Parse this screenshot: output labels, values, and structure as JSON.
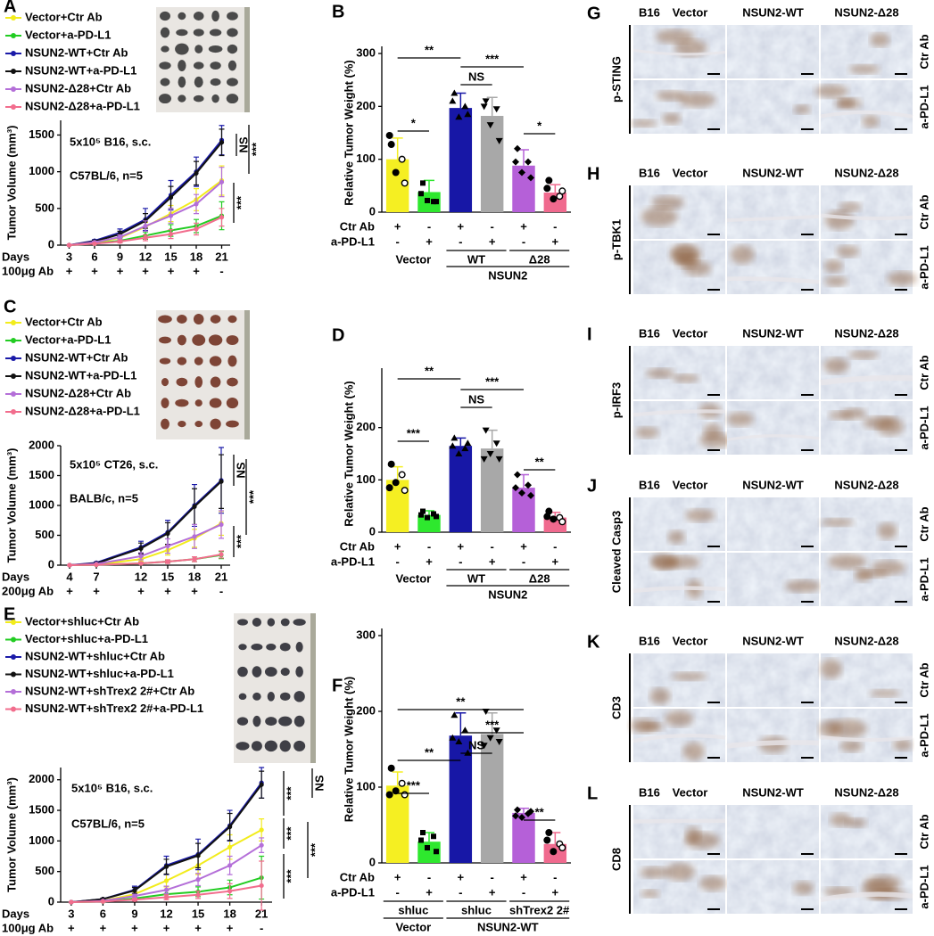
{
  "chart_data": [
    {
      "type": "line",
      "panel": "A",
      "ylabel": "Tumor Volume (mm³)",
      "xlabel": "Days",
      "dose_label": "100μg Ab",
      "x": [
        3,
        6,
        9,
        12,
        15,
        18,
        21
      ],
      "xlim": [
        2,
        22
      ],
      "ylim": [
        0,
        1700
      ],
      "yticks": [
        0,
        500,
        1000,
        1500
      ],
      "dose_marks": [
        "+",
        "+",
        "+",
        "+",
        "+",
        "+",
        "-"
      ],
      "annotations": [
        "5x10⁵ B16, s.c.",
        "C57BL/6, n=5"
      ],
      "significance": [
        "NS",
        "***",
        "***"
      ],
      "series": [
        {
          "name": "Vector+Ctr Ab",
          "color": "#f2ec1c",
          "values": [
            0,
            30,
            100,
            250,
            430,
            620,
            880
          ],
          "errors": [
            0,
            10,
            30,
            60,
            110,
            150,
            200
          ]
        },
        {
          "name": "Vector+a-PD-L1",
          "color": "#22cc22",
          "values": [
            0,
            20,
            60,
            130,
            200,
            260,
            400
          ],
          "errors": [
            0,
            8,
            25,
            50,
            80,
            90,
            190
          ]
        },
        {
          "name": "NSUN2-WT+Ctr Ab",
          "color": "#1a1aa8",
          "values": [
            0,
            60,
            170,
            350,
            680,
            1000,
            1430
          ],
          "errors": [
            0,
            15,
            50,
            150,
            200,
            200,
            200
          ]
        },
        {
          "name": "NSUN2-WT+a-PD-L1",
          "color": "#111111",
          "values": [
            0,
            50,
            150,
            330,
            650,
            980,
            1400
          ],
          "errors": [
            0,
            15,
            40,
            100,
            150,
            160,
            180
          ]
        },
        {
          "name": "NSUN2-Δ28+Ctr Ab",
          "color": "#b46fd8",
          "values": [
            0,
            40,
            110,
            260,
            400,
            560,
            860
          ],
          "errors": [
            0,
            12,
            30,
            70,
            100,
            130,
            200
          ]
        },
        {
          "name": "NSUN2-Δ28+a-PD-L1",
          "color": "#f26d8d",
          "values": [
            0,
            20,
            50,
            100,
            150,
            220,
            380
          ],
          "errors": [
            0,
            8,
            20,
            40,
            60,
            80,
            120
          ]
        }
      ]
    },
    {
      "type": "bar",
      "panel": "B",
      "ylabel": "Relative Tumor Weight (%)",
      "ylim": [
        0,
        300
      ],
      "yticks": [
        0,
        100,
        200,
        300
      ],
      "values": [
        100,
        38,
        197,
        182,
        88,
        37
      ],
      "errors": [
        40,
        22,
        28,
        35,
        30,
        15
      ],
      "colors": [
        "#f5ef22",
        "#2ee82e",
        "#1717a6",
        "#a8a8a8",
        "#b560d8",
        "#f06a8e"
      ],
      "points": [
        [
          128,
          100,
          75,
          55,
          145
        ],
        [
          55,
          20,
          22,
          20,
          35
        ],
        [
          225,
          200,
          180,
          185,
          210
        ],
        [
          210,
          195,
          165,
          135,
          200
        ],
        [
          120,
          95,
          75,
          65,
          95
        ],
        [
          60,
          30,
          25,
          40,
          45
        ]
      ],
      "treatment_rows": [
        {
          "label": "Ctr Ab",
          "marks": [
            "+",
            "-",
            "+",
            "-",
            "+",
            "-"
          ]
        },
        {
          "label": "a-PD-L1",
          "marks": [
            "-",
            "+",
            "-",
            "+",
            "-",
            "+"
          ]
        }
      ],
      "group_labels": [
        "Vector",
        "WT",
        "Δ28"
      ],
      "supergroup_labels": [
        "NSUN2"
      ],
      "significance": [
        "**",
        "***",
        "NS",
        "*",
        "*"
      ]
    },
    {
      "type": "line",
      "panel": "C",
      "ylabel": "Tumor Volume (mm³)",
      "xlabel": "Days",
      "dose_label": "200μg Ab",
      "x": [
        4,
        7,
        12,
        15,
        18,
        21
      ],
      "xlim": [
        3,
        22
      ],
      "ylim": [
        0,
        2000
      ],
      "yticks": [
        0,
        500,
        1000,
        1500,
        2000
      ],
      "dose_marks": [
        "+",
        "+",
        "+",
        "+",
        "+",
        "-"
      ],
      "annotations": [
        "5x10⁵ CT26, s.c.",
        "BALB/c, n=5"
      ],
      "significance": [
        "NS",
        "***",
        "***"
      ],
      "series": [
        {
          "name": "Vector+Ctr Ab",
          "color": "#f2ec1c",
          "values": [
            0,
            10,
            100,
            250,
            450,
            700
          ],
          "errors": [
            0,
            5,
            40,
            80,
            150,
            200
          ]
        },
        {
          "name": "Vector+a-PD-L1",
          "color": "#22cc22",
          "values": [
            0,
            5,
            30,
            60,
            100,
            170
          ],
          "errors": [
            0,
            3,
            15,
            25,
            40,
            60
          ]
        },
        {
          "name": "NSUN2-WT+Ctr Ab",
          "color": "#1a1aa8",
          "values": [
            0,
            40,
            300,
            550,
            1000,
            1420
          ],
          "errors": [
            0,
            15,
            100,
            200,
            350,
            550
          ]
        },
        {
          "name": "NSUN2-WT+a-PD-L1",
          "color": "#111111",
          "values": [
            0,
            30,
            280,
            530,
            980,
            1400
          ],
          "errors": [
            0,
            12,
            90,
            180,
            300,
            450
          ]
        },
        {
          "name": "NSUN2-Δ28+Ctr Ab",
          "color": "#b46fd8",
          "values": [
            0,
            20,
            150,
            320,
            480,
            680
          ],
          "errors": [
            0,
            8,
            60,
            120,
            200,
            230
          ]
        },
        {
          "name": "NSUN2-Δ28+a-PD-L1",
          "color": "#f26d8d",
          "values": [
            0,
            5,
            30,
            60,
            100,
            180
          ],
          "errors": [
            0,
            3,
            15,
            30,
            40,
            60
          ]
        }
      ]
    },
    {
      "type": "bar",
      "panel": "D",
      "ylabel": "Relative Tumor Weight (%)",
      "ylim": [
        0,
        300
      ],
      "yticks": [
        0,
        100,
        200
      ],
      "values": [
        100,
        33,
        165,
        160,
        85,
        28
      ],
      "errors": [
        25,
        8,
        15,
        35,
        25,
        10
      ],
      "colors": [
        "#f5ef22",
        "#2ee82e",
        "#1717a6",
        "#a8a8a8",
        "#b560d8",
        "#f06a8e"
      ],
      "points": [
        [
          130,
          110,
          95,
          80,
          85
        ],
        [
          40,
          35,
          28,
          30,
          33
        ],
        [
          180,
          160,
          150,
          170,
          165
        ],
        [
          195,
          170,
          150,
          140,
          140
        ],
        [
          110,
          90,
          75,
          70,
          85
        ],
        [
          40,
          28,
          25,
          20,
          30
        ]
      ],
      "treatment_rows": [
        {
          "label": "Ctr Ab",
          "marks": [
            "+",
            "-",
            "+",
            "-",
            "+",
            "-"
          ]
        },
        {
          "label": "a-PD-L1",
          "marks": [
            "-",
            "+",
            "-",
            "+",
            "-",
            "+"
          ]
        }
      ],
      "group_labels": [
        "Vector",
        "WT",
        "Δ28"
      ],
      "supergroup_labels": [
        "NSUN2"
      ],
      "significance": [
        "**",
        "***",
        "NS",
        "***",
        "**"
      ]
    },
    {
      "type": "line",
      "panel": "E",
      "ylabel": "Tumor Volume (mm³)",
      "xlabel": "Days",
      "dose_label": "100μg Ab",
      "x": [
        3,
        6,
        9,
        12,
        15,
        18,
        21
      ],
      "xlim": [
        2,
        22
      ],
      "ylim": [
        0,
        2200
      ],
      "yticks": [
        0,
        500,
        1000,
        1500,
        2000
      ],
      "dose_marks": [
        "+",
        "+",
        "+",
        "+",
        "+",
        "+",
        "-"
      ],
      "annotations": [
        "5x10⁵ B16, s.c.",
        "C57BL/6, n=5"
      ],
      "significance": [
        "NS",
        "***",
        "***",
        "***",
        "***"
      ],
      "series": [
        {
          "name": "Vector+shluc+Ctr Ab",
          "color": "#f2ec1c",
          "values": [
            0,
            20,
            130,
            350,
            600,
            900,
            1180
          ],
          "errors": [
            0,
            10,
            40,
            100,
            150,
            200,
            180
          ]
        },
        {
          "name": "Vector+shluc+a-PD-L1",
          "color": "#22cc22",
          "values": [
            0,
            10,
            60,
            130,
            170,
            240,
            400
          ],
          "errors": [
            0,
            5,
            30,
            60,
            80,
            120,
            350
          ]
        },
        {
          "name": "NSUN2-WT+shluc+Ctr Ab",
          "color": "#1a1aa8",
          "values": [
            0,
            50,
            200,
            600,
            780,
            1250,
            1950
          ],
          "errors": [
            0,
            15,
            60,
            150,
            250,
            250,
            250
          ]
        },
        {
          "name": "NSUN2-WT+shluc+a-PD-L1",
          "color": "#111111",
          "values": [
            0,
            50,
            190,
            580,
            760,
            1230,
            1920
          ],
          "errors": [
            0,
            15,
            50,
            120,
            200,
            220,
            220
          ]
        },
        {
          "name": "NSUN2-WT+shTrex2 2#+Ctr Ab",
          "color": "#b46fd8",
          "values": [
            0,
            20,
            100,
            200,
            370,
            600,
            930
          ],
          "errors": [
            0,
            8,
            30,
            60,
            100,
            150,
            120
          ]
        },
        {
          "name": "NSUN2-WT+shTrex2 2#+a-PD-L1",
          "color": "#f26d8d",
          "values": [
            0,
            10,
            40,
            80,
            120,
            180,
            270
          ],
          "errors": [
            0,
            5,
            20,
            40,
            60,
            120,
            400
          ]
        }
      ]
    },
    {
      "type": "bar",
      "panel": "F",
      "ylabel": "Relative Tumor Weight (%)",
      "ylim": [
        0,
        300
      ],
      "yticks": [
        0,
        100,
        200,
        300
      ],
      "values": [
        102,
        28,
        168,
        170,
        66,
        25
      ],
      "errors": [
        18,
        12,
        30,
        28,
        6,
        15
      ],
      "colors": [
        "#f5ef22",
        "#2ee82e",
        "#1717a6",
        "#a8a8a8",
        "#b560d8",
        "#f06a8e"
      ],
      "points": [
        [
          125,
          105,
          95,
          90,
          90
        ],
        [
          40,
          35,
          20,
          15,
          30
        ],
        [
          195,
          175,
          160,
          145,
          165
        ],
        [
          200,
          175,
          165,
          160,
          155
        ],
        [
          70,
          65,
          60,
          68,
          62
        ],
        [
          40,
          25,
          15,
          20,
          30
        ]
      ],
      "treatment_rows": [
        {
          "label": "Ctr Ab",
          "marks": [
            "+",
            "-",
            "+",
            "-",
            "+",
            "-"
          ]
        },
        {
          "label": "a-PD-L1",
          "marks": [
            "-",
            "+",
            "-",
            "+",
            "-",
            "+"
          ]
        }
      ],
      "group_labels": [
        "shluc",
        "shluc",
        "shTrex2 2#"
      ],
      "supergroup_labels": [
        "Vector",
        "NSUN2-WT"
      ],
      "significance": [
        "**",
        "***",
        "NS",
        "**",
        "***",
        "**"
      ]
    }
  ],
  "ihc_panels": [
    {
      "panel": "G",
      "cell": "B16",
      "columns": [
        "Vector",
        "NSUN2-WT",
        "NSUN2-Δ28"
      ],
      "stain": "p-STING",
      "rows": [
        "Ctr Ab",
        "a-PD-L1"
      ]
    },
    {
      "panel": "H",
      "cell": "B16",
      "columns": [
        "Vector",
        "NSUN2-WT",
        "NSUN2-Δ28"
      ],
      "stain": "p-TBK1",
      "rows": [
        "Ctr Ab",
        "a-PD-L1"
      ]
    },
    {
      "panel": "I",
      "cell": "B16",
      "columns": [
        "Vector",
        "NSUN2-WT",
        "NSUN2-Δ28"
      ],
      "stain": "p-IRF3",
      "rows": [
        "Ctr Ab",
        "a-PD-L1"
      ]
    },
    {
      "panel": "J",
      "cell": "B16",
      "columns": [
        "Vector",
        "NSUN2-WT",
        "NSUN2-Δ28"
      ],
      "stain": "Cleaved Casp3",
      "rows": [
        "Ctr Ab",
        "a-PD-L1"
      ]
    },
    {
      "panel": "K",
      "cell": "B16",
      "columns": [
        "Vector",
        "NSUN2-WT",
        "NSUN2-Δ28"
      ],
      "stain": "CD3",
      "rows": [
        "Ctr Ab",
        "a-PD-L1"
      ]
    },
    {
      "panel": "L",
      "cell": "B16",
      "columns": [
        "Vector",
        "NSUN2-WT",
        "NSUN2-Δ28"
      ],
      "stain": "CD8",
      "rows": [
        "Ctr Ab",
        "a-PD-L1"
      ]
    }
  ]
}
